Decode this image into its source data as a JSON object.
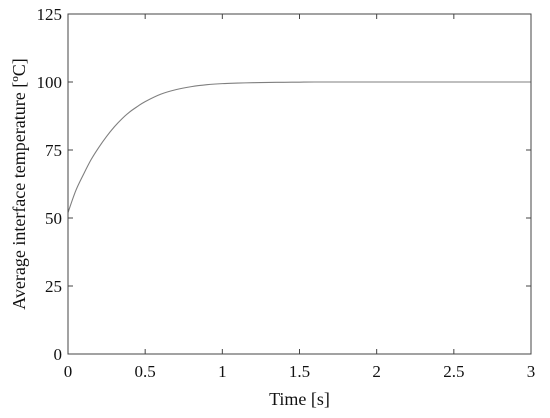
{
  "chart_data": {
    "type": "line",
    "xlabel": "Time [s]",
    "ylabel": "Average interface temperature [ºC]",
    "xlim": [
      0,
      3
    ],
    "ylim": [
      0,
      125
    ],
    "xticks": [
      0,
      0.5,
      1,
      1.5,
      2,
      2.5,
      3
    ],
    "xtick_labels": [
      "0",
      "0.5",
      "1",
      "1.5",
      "2",
      "2.5",
      "3"
    ],
    "yticks": [
      0,
      25,
      50,
      75,
      100,
      125
    ],
    "ytick_labels": [
      "0",
      "25",
      "50",
      "75",
      "100",
      "125"
    ],
    "grid": false,
    "series": [
      {
        "color": "#7f7f7f",
        "x": [
          0,
          0.05,
          0.1,
          0.15,
          0.2,
          0.25,
          0.3,
          0.35,
          0.4,
          0.45,
          0.5,
          0.6,
          0.7,
          0.8,
          0.9,
          1.0,
          1.1,
          1.2,
          1.3,
          1.4,
          1.5,
          1.6,
          1.8,
          2.0,
          2.5,
          3.0
        ],
        "y": [
          52,
          60,
          66,
          71.5,
          76,
          80,
          83.5,
          86.5,
          89,
          91,
          92.8,
          95.5,
          97.2,
          98.3,
          99.0,
          99.4,
          99.6,
          99.75,
          99.85,
          99.9,
          99.95,
          100,
          100,
          100,
          100,
          100
        ]
      }
    ]
  }
}
